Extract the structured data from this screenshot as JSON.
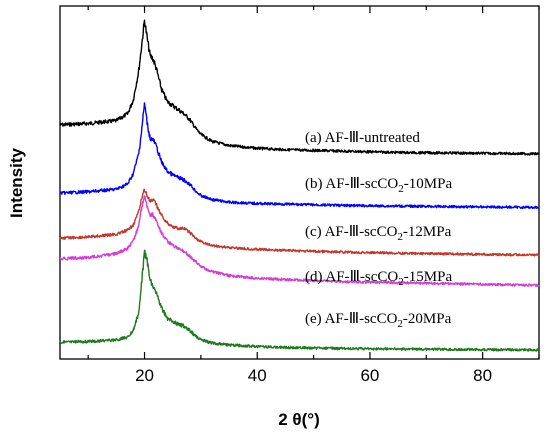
{
  "chart_data": {
    "type": "line",
    "title": "",
    "xlabel": "2 θ(°)",
    "ylabel": "Intensity",
    "xlim": [
      5,
      90
    ],
    "x_ticks": [
      20,
      40,
      60,
      80
    ],
    "x_tick_labels": [
      "20",
      "40",
      "60",
      "80"
    ],
    "y_ticks_shown": false,
    "grid": false,
    "legend": "inline-labels-right",
    "x": [
      5,
      10,
      15,
      17,
      18,
      19,
      19.5,
      20,
      20.5,
      21,
      21.5,
      22,
      23,
      24,
      25,
      26,
      27,
      28,
      29,
      30,
      32,
      35,
      40,
      45,
      50,
      55,
      60,
      65,
      70,
      75,
      80,
      85,
      90
    ],
    "series": [
      {
        "label_parts": [
          {
            "t": "(a) AF-Ⅲ-untreated",
            "sub": false
          }
        ],
        "color": "#000000",
        "values": [
          24,
          25,
          27,
          32,
          42,
          64,
          82,
          100,
          86,
          74,
          72,
          66,
          50,
          41,
          38,
          35,
          32,
          28,
          22,
          17,
          12,
          9,
          7,
          6,
          5.5,
          5,
          4.5,
          4,
          3.8,
          3.6,
          3.4,
          3.2,
          3
        ]
      },
      {
        "label_parts": [
          {
            "t": "(b) AF-Ⅲ-scCO",
            "sub": false
          },
          {
            "t": "2",
            "sub": true
          },
          {
            "t": "-10MPa",
            "sub": false
          }
        ],
        "color": "#0000ff",
        "values": [
          13,
          14,
          16,
          20,
          28,
          44,
          62,
          82,
          66,
          55,
          54,
          50,
          37,
          30,
          27,
          25,
          23,
          20,
          15,
          11,
          8,
          6,
          5,
          4.5,
          4,
          3.5,
          3.2,
          3,
          2.8,
          2.6,
          2.4,
          2.2,
          2
        ]
      },
      {
        "label_parts": [
          {
            "t": "(c) AF-Ⅲ-scCO",
            "sub": false
          },
          {
            "t": "2",
            "sub": true
          },
          {
            "t": "-12MPa",
            "sub": false
          }
        ],
        "color": "#c0392b",
        "values": [
          10,
          10.5,
          12,
          14,
          17,
          24,
          31,
          36,
          32,
          29,
          30,
          28,
          22,
          18,
          16,
          15,
          15,
          13,
          10,
          8,
          6,
          5,
          4,
          3.5,
          3,
          2.6,
          2.3,
          2,
          1.8,
          1.6,
          1.4,
          1.2,
          1
        ]
      },
      {
        "label_parts": [
          {
            "t": "(d) AF-Ⅲ-scCO",
            "sub": false
          },
          {
            "t": "2",
            "sub": true
          },
          {
            "t": "-15MPa",
            "sub": false
          }
        ],
        "color": "#d63bd6",
        "values": [
          12,
          12.5,
          14,
          16,
          19,
          25,
          32,
          36,
          32,
          29,
          29,
          27,
          22,
          19,
          17,
          16,
          15,
          13,
          11,
          9,
          7,
          5.5,
          4.5,
          4,
          3.6,
          3.2,
          3,
          2.8,
          2.6,
          2.4,
          2.2,
          2,
          1.8
        ]
      },
      {
        "label_parts": [
          {
            "t": "(e) AF-Ⅲ-scCO",
            "sub": false
          },
          {
            "t": "2",
            "sub": true
          },
          {
            "t": "-20MPa",
            "sub": false
          }
        ],
        "color": "#1e7a1e",
        "values": [
          10,
          10.5,
          12,
          15,
          22,
          40,
          70,
          100,
          90,
          72,
          66,
          60,
          44,
          34,
          30,
          28,
          26,
          22,
          16,
          12,
          9,
          7,
          5.5,
          4.5,
          4,
          3.5,
          3.2,
          3,
          2.8,
          2.6,
          2.4,
          2.2,
          2
        ]
      }
    ]
  }
}
